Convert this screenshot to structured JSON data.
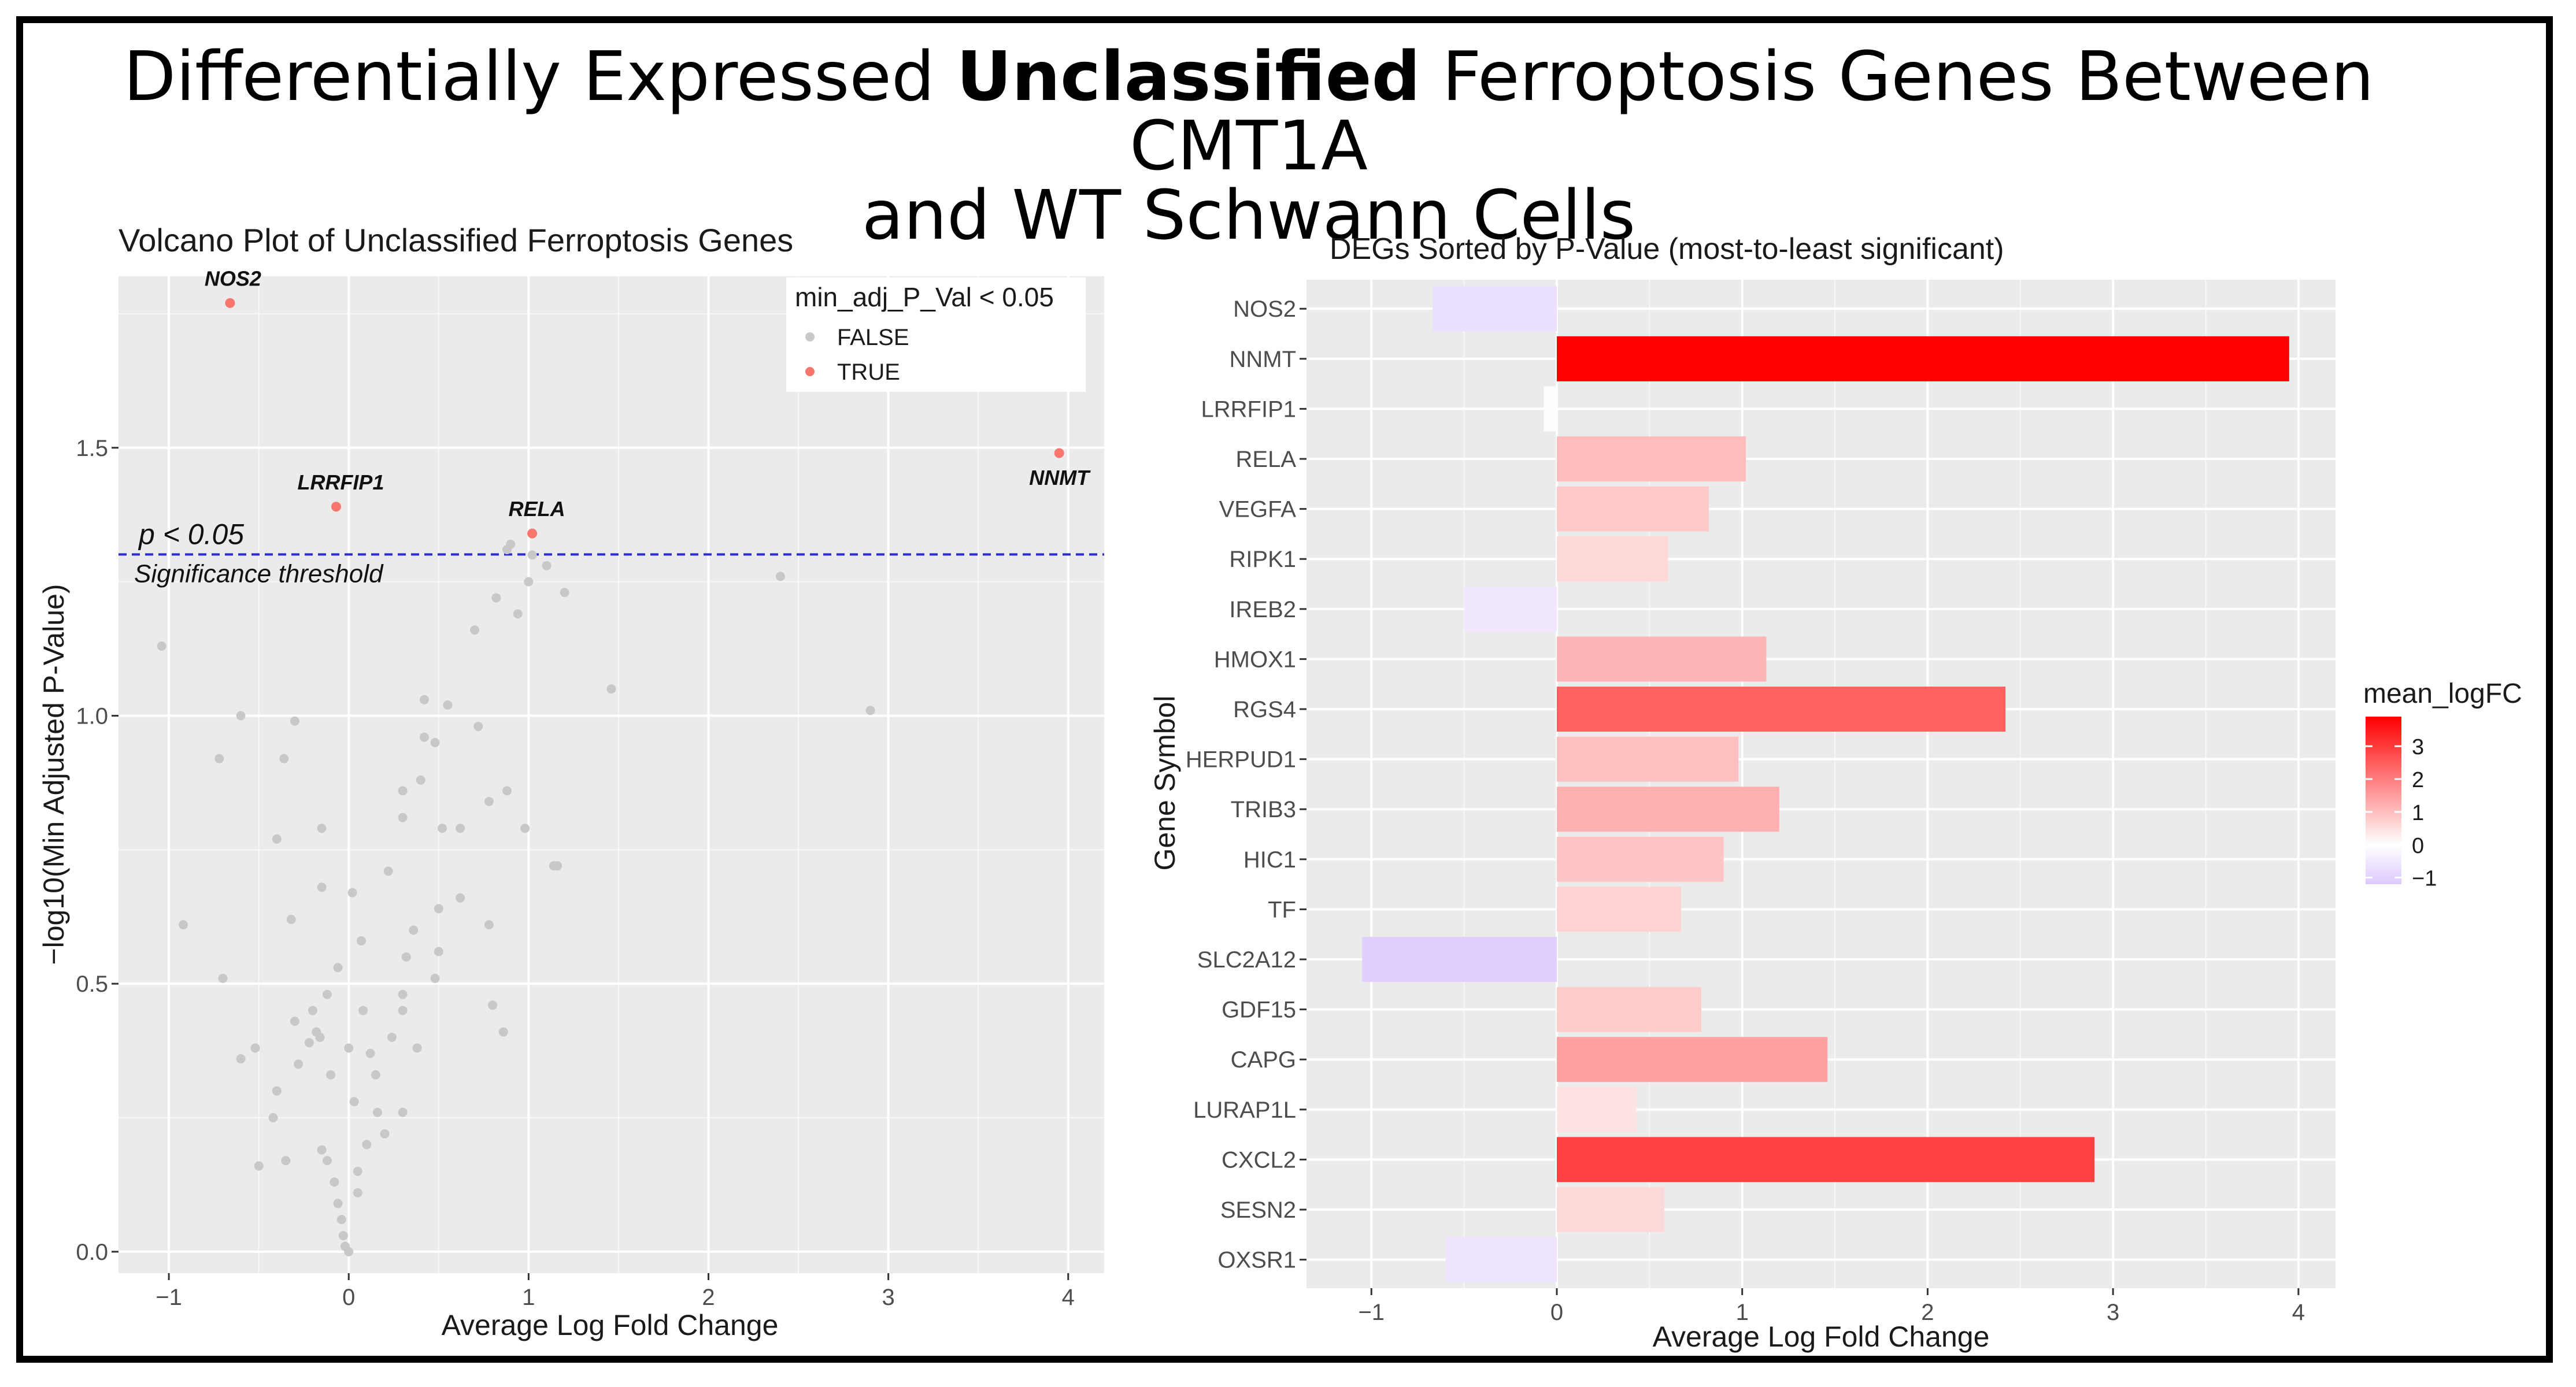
{
  "title": {
    "line1_before": "Differentially Expressed ",
    "line1_bold": "Unclassified",
    "line1_after": " Ferroptosis Genes Between CMT1A",
    "line2": "and WT Schwann Cells"
  },
  "colors": {
    "panel_bg": "#ebebeb",
    "grid": "#ffffff",
    "point_false": "#c8c8c8",
    "point_true": "#f8766d",
    "threshold": "#2b2bd8",
    "grad_low": "#ddc8ff",
    "grad_mid": "#ffffff",
    "grad_high": "#ff0000"
  },
  "chart_data": [
    {
      "type": "scatter",
      "title": "Volcano Plot of Unclassified Ferroptosis Genes",
      "xlabel": "Average Log Fold Change",
      "ylabel": "−log10(Min Adjusted P-Value)",
      "xlim": [
        -1.28,
        4.2
      ],
      "ylim": [
        -0.04,
        1.82
      ],
      "xticks": [
        -1,
        0,
        1,
        2,
        3,
        4
      ],
      "xtick_labels": [
        "−1",
        "0",
        "1",
        "2",
        "3",
        "4"
      ],
      "yticks": [
        0.0,
        0.5,
        1.0,
        1.5
      ],
      "ytick_labels": [
        "0.0",
        "0.5",
        "1.0",
        "1.5"
      ],
      "legend": {
        "title": "min_adj_P_Val < 0.05",
        "entries": [
          "FALSE",
          "TRUE"
        ],
        "position": "top-right"
      },
      "threshold": {
        "y": 1.301,
        "label": "p < 0.05",
        "sublabel": "Significance threshold"
      },
      "labeled_points": [
        {
          "label": "NOS2",
          "x": -0.66,
          "y": 1.77
        },
        {
          "label": "LRRFIP1",
          "x": -0.07,
          "y": 1.39
        },
        {
          "label": "RELA",
          "x": 1.02,
          "y": 1.34
        },
        {
          "label": "NNMT",
          "x": 3.95,
          "y": 1.49
        }
      ],
      "other_points": [
        [
          -1.04,
          1.13
        ],
        [
          -0.92,
          0.61
        ],
        [
          -0.72,
          0.92
        ],
        [
          -0.7,
          0.51
        ],
        [
          -0.6,
          1.0
        ],
        [
          -0.6,
          0.36
        ],
        [
          -0.52,
          0.38
        ],
        [
          -0.5,
          0.16
        ],
        [
          -0.42,
          0.25
        ],
        [
          -0.4,
          0.77
        ],
        [
          -0.36,
          0.92
        ],
        [
          -0.32,
          0.62
        ],
        [
          -0.3,
          0.99
        ],
        [
          -0.3,
          0.43
        ],
        [
          -0.4,
          0.3
        ],
        [
          -0.35,
          0.17
        ],
        [
          -0.28,
          0.35
        ],
        [
          -0.22,
          0.39
        ],
        [
          -0.2,
          0.45
        ],
        [
          -0.18,
          0.41
        ],
        [
          -0.16,
          0.4
        ],
        [
          -0.15,
          0.79
        ],
        [
          -0.15,
          0.68
        ],
        [
          -0.12,
          0.48
        ],
        [
          -0.15,
          0.19
        ],
        [
          -0.12,
          0.17
        ],
        [
          -0.1,
          0.33
        ],
        [
          -0.08,
          0.13
        ],
        [
          -0.06,
          0.53
        ],
        [
          -0.06,
          0.09
        ],
        [
          -0.04,
          0.06
        ],
        [
          -0.03,
          0.03
        ],
        [
          -0.02,
          0.01
        ],
        [
          0.0,
          0.0
        ],
        [
          0.0,
          0.38
        ],
        [
          0.02,
          0.67
        ],
        [
          0.03,
          0.28
        ],
        [
          0.05,
          0.15
        ],
        [
          0.05,
          0.11
        ],
        [
          0.07,
          0.58
        ],
        [
          0.08,
          0.45
        ],
        [
          0.1,
          0.2
        ],
        [
          0.12,
          0.37
        ],
        [
          0.15,
          0.33
        ],
        [
          0.16,
          0.26
        ],
        [
          0.2,
          0.22
        ],
        [
          0.22,
          0.71
        ],
        [
          0.24,
          0.4
        ],
        [
          0.3,
          0.86
        ],
        [
          0.3,
          0.48
        ],
        [
          0.3,
          0.45
        ],
        [
          0.3,
          0.26
        ],
        [
          0.32,
          0.55
        ],
        [
          0.3,
          0.81
        ],
        [
          0.36,
          0.6
        ],
        [
          0.38,
          0.38
        ],
        [
          0.42,
          0.96
        ],
        [
          0.4,
          0.88
        ],
        [
          0.42,
          1.03
        ],
        [
          0.48,
          0.95
        ],
        [
          0.48,
          0.51
        ],
        [
          0.5,
          0.64
        ],
        [
          0.5,
          0.56
        ],
        [
          0.52,
          0.79
        ],
        [
          0.55,
          1.02
        ],
        [
          0.62,
          0.79
        ],
        [
          0.62,
          0.66
        ],
        [
          0.7,
          1.16
        ],
        [
          0.72,
          0.98
        ],
        [
          0.78,
          0.61
        ],
        [
          0.78,
          0.84
        ],
        [
          0.8,
          0.46
        ],
        [
          0.82,
          1.22
        ],
        [
          0.86,
          0.41
        ],
        [
          0.88,
          1.31
        ],
        [
          0.9,
          1.32
        ],
        [
          0.94,
          1.19
        ],
        [
          1.0,
          1.25
        ],
        [
          1.02,
          1.3
        ],
        [
          1.1,
          1.28
        ],
        [
          1.14,
          0.72
        ],
        [
          1.16,
          0.72
        ],
        [
          1.2,
          1.23
        ],
        [
          1.46,
          1.05
        ],
        [
          2.4,
          1.26
        ],
        [
          2.9,
          1.01
        ],
        [
          0.98,
          0.79
        ],
        [
          0.88,
          0.86
        ]
      ]
    },
    {
      "type": "bar",
      "orientation": "horizontal",
      "title": "DEGs Sorted by P-Value (most-to-least significant)",
      "xlabel": "Average Log Fold Change",
      "ylabel": "Gene Symbol",
      "xlim": [
        -1.35,
        4.2
      ],
      "xticks": [
        -1,
        0,
        1,
        2,
        3,
        4
      ],
      "xtick_labels": [
        "−1",
        "0",
        "1",
        "2",
        "3",
        "4"
      ],
      "categories": [
        "NOS2",
        "NNMT",
        "LRRFIP1",
        "RELA",
        "VEGFA",
        "RIPK1",
        "IREB2",
        "HMOX1",
        "RGS4",
        "HERPUD1",
        "TRIB3",
        "HIC1",
        "TF",
        "SLC2A12",
        "GDF15",
        "CAPG",
        "LURAP1L",
        "CXCL2",
        "SESN2",
        "OXSR1"
      ],
      "values": [
        -0.67,
        3.95,
        -0.07,
        1.02,
        0.82,
        0.6,
        -0.5,
        1.13,
        2.42,
        0.98,
        1.2,
        0.9,
        0.67,
        -1.05,
        0.78,
        1.46,
        0.43,
        2.9,
        0.58,
        -0.6
      ],
      "legend": {
        "title": "mean_logFC",
        "position": "right",
        "range": [
          -1.2,
          3.9
        ],
        "ticks": [
          3,
          2,
          1,
          0,
          -1
        ],
        "tick_labels": [
          "3",
          "2",
          "1",
          "0",
          "−1"
        ]
      }
    }
  ]
}
